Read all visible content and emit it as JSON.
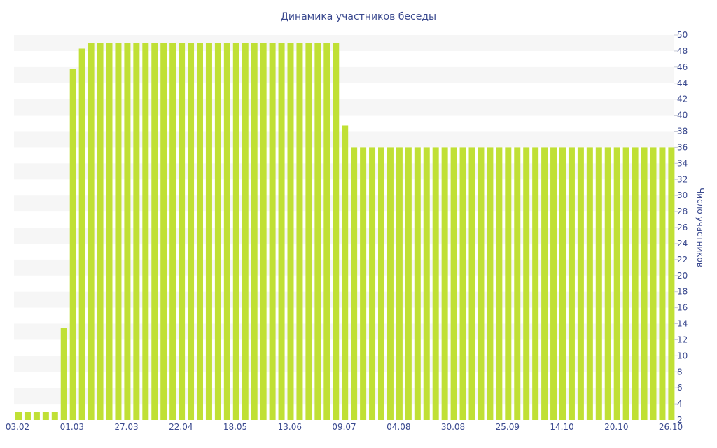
{
  "chart_data": {
    "type": "bar",
    "title": "Динамика участников беседы",
    "ylabel": "Число участников",
    "xlabel": "",
    "ylim": [
      2,
      50
    ],
    "y_ticks": [
      4,
      6,
      8,
      10,
      12,
      14,
      16,
      18,
      20,
      22,
      24,
      26,
      28,
      30,
      32,
      34,
      36,
      38,
      40,
      42,
      44,
      46,
      48,
      50
    ],
    "x_tick_labels": [
      "03.02",
      "01.03",
      "27.03",
      "22.04",
      "18.05",
      "13.06",
      "09.07",
      "04.08",
      "30.08",
      "25.09",
      "14.10",
      "20.10",
      "26.10"
    ],
    "grid": "horizontal bands",
    "legend": "none",
    "bar_color": "#c0e035",
    "text_color": "#3b4a8f",
    "band_color": "#f6f6f6",
    "values": [
      3,
      3,
      3,
      3,
      3,
      13.5,
      45.8,
      48.3,
      49,
      49,
      49,
      49,
      49,
      49,
      49,
      49,
      49,
      49,
      49,
      49,
      49,
      49,
      49,
      49,
      49,
      49,
      49,
      49,
      49,
      49,
      49,
      49,
      49,
      49,
      49,
      49,
      38.7,
      36,
      36,
      36,
      36,
      36,
      36,
      36,
      36,
      36,
      36,
      36,
      36,
      36,
      36,
      36,
      36,
      36,
      36,
      36,
      36,
      36,
      36,
      36,
      36,
      36,
      36,
      36,
      36,
      36,
      36,
      36,
      36,
      36,
      36,
      36,
      36
    ]
  }
}
